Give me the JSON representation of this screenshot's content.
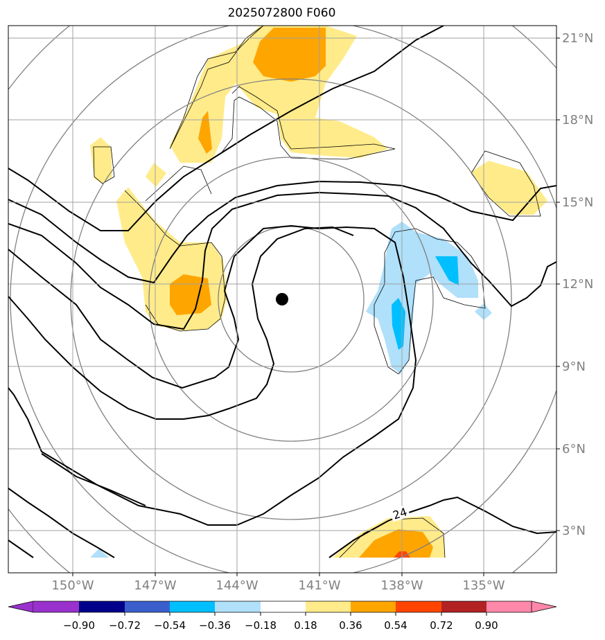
{
  "title": "2025072800 F060",
  "lat_labels": [
    "21°N",
    "18°N",
    "15°N",
    "12°N",
    "9°N",
    "6°N",
    "3°N"
  ],
  "lon_labels": [
    "150°W",
    "147°W",
    "144°W",
    "141°W",
    "138°W",
    "135°W"
  ],
  "contour_label": "24",
  "colorbar": {
    "ticks": [
      "−0.90",
      "−0.72",
      "−0.54",
      "−0.36",
      "−0.18",
      "0.18",
      "0.36",
      "0.54",
      "0.72",
      "0.90"
    ],
    "colors": [
      "#9932cc",
      "#00008b",
      "#3a5fcd",
      "#00bfff",
      "#b0e0fa",
      "#ffffff",
      "#ffeb8a",
      "#ffa500",
      "#ff4500",
      "#b22222",
      "#ff88aa"
    ]
  },
  "colors": {
    "gray_grid": "#a0a0a0",
    "circle": "#808080",
    "yellow": "#ffeb8a",
    "orange": "#ffa500",
    "red": "#ff4500",
    "lightblue": "#b0e0fa",
    "blue": "#00bfff"
  },
  "center_marker": {
    "lon": -142.2,
    "lat": 11.5
  }
}
